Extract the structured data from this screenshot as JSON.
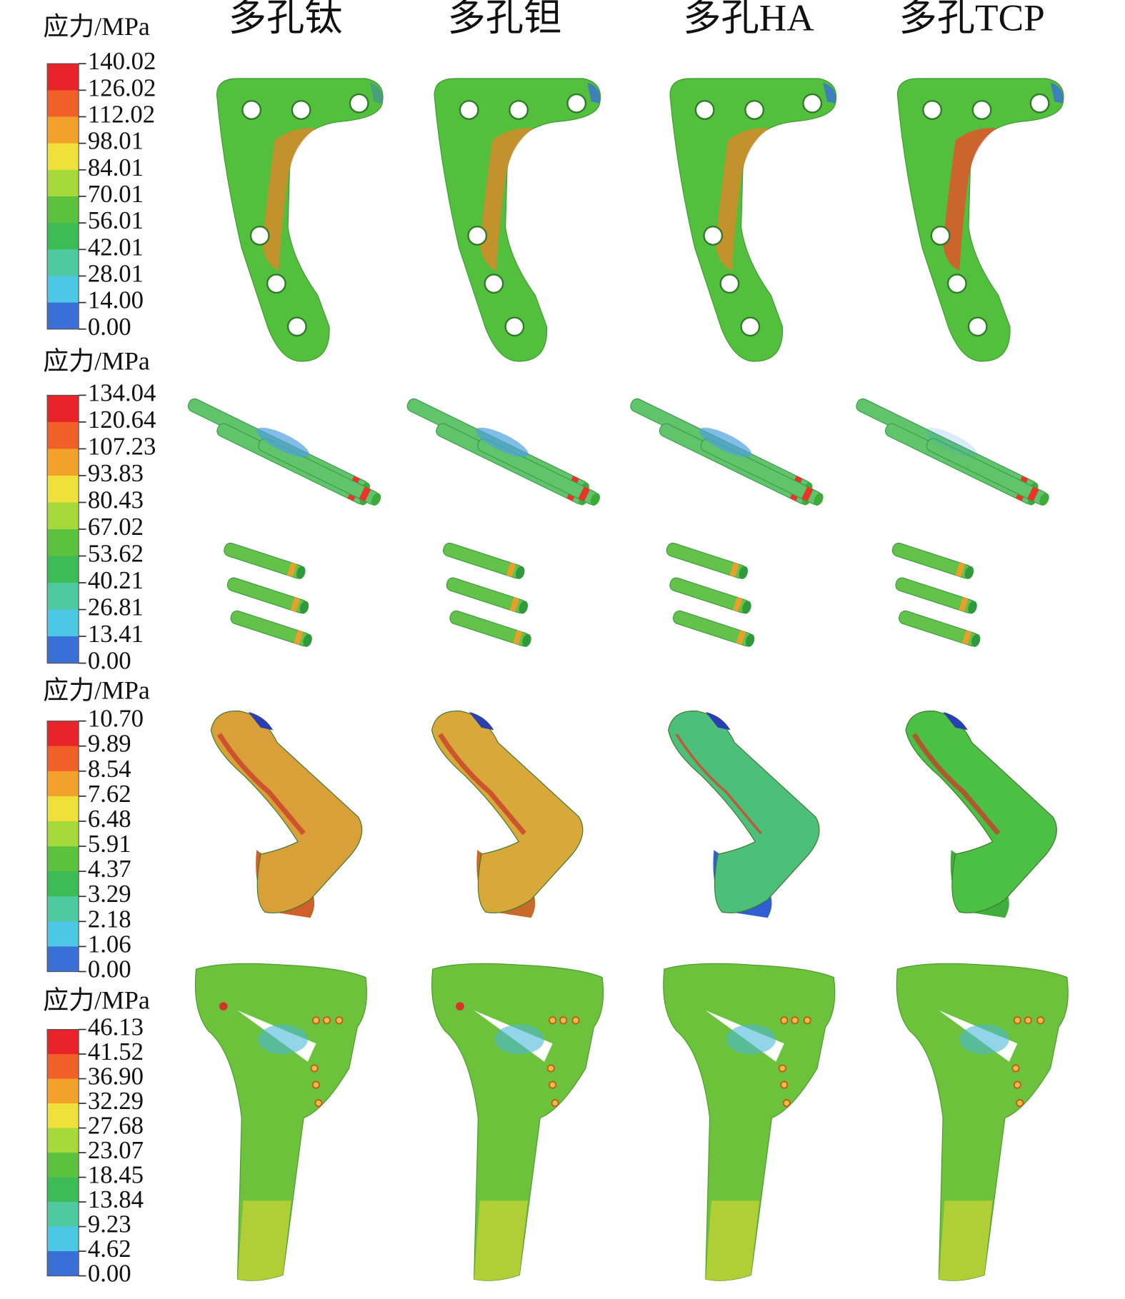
{
  "columns": [
    "多孔钛",
    "多孔钽",
    "多孔HA",
    "多孔TCP"
  ],
  "legends": [
    {
      "title": "应力/MPa",
      "labels": [
        "140.02",
        "126.02",
        "112.02",
        "98.01",
        "84.01",
        "70.01",
        "56.01",
        "42.01",
        "28.01",
        "14.00",
        "0.00"
      ]
    },
    {
      "title": "应力/MPa",
      "labels": [
        "134.04",
        "120.64",
        "107.23",
        "93.83",
        "80.43",
        "67.02",
        "53.62",
        "40.21",
        "26.81",
        "13.41",
        "0.00"
      ]
    },
    {
      "title": "应力/MPa",
      "labels": [
        "10.70",
        "9.89",
        "8.54",
        "7.62",
        "6.48",
        "5.91",
        "4.37",
        "3.29",
        "2.18",
        "1.06",
        "0.00"
      ]
    },
    {
      "title": "应力/MPa",
      "labels": [
        "46.13",
        "41.52",
        "36.90",
        "32.29",
        "27.68",
        "23.07",
        "18.45",
        "13.84",
        "9.23",
        "4.62",
        "0.00"
      ]
    }
  ]
}
